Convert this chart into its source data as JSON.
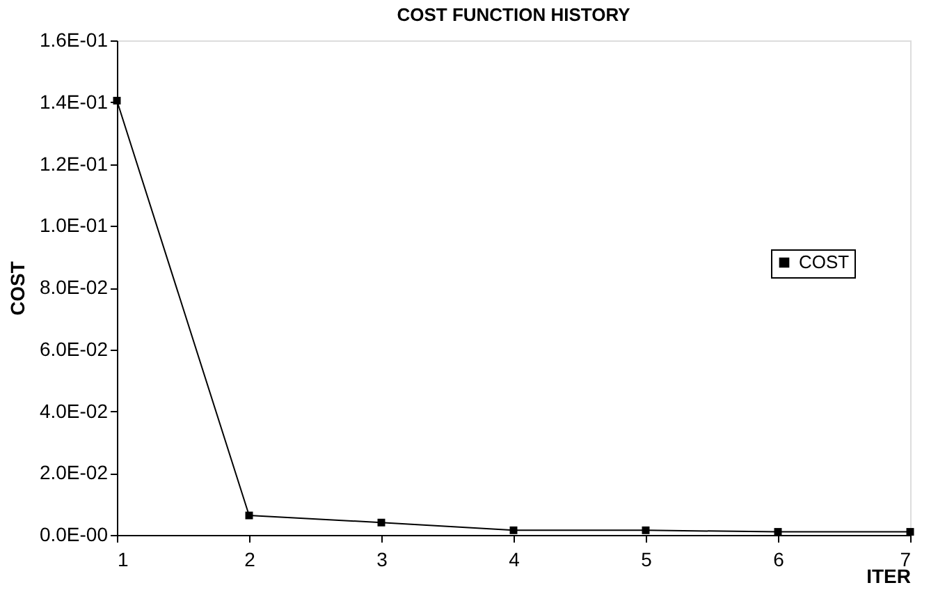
{
  "chart_data": {
    "type": "line",
    "title": "COST FUNCTION HISTORY",
    "xlabel": "ITER",
    "ylabel": "COST",
    "x": [
      1,
      2,
      3,
      4,
      5,
      6,
      7
    ],
    "series": [
      {
        "name": "COST",
        "color": "#000000",
        "values": [
          0.1405,
          0.0063,
          0.004,
          0.0015,
          0.0015,
          0.001,
          0.001
        ]
      }
    ],
    "xlim": [
      1,
      7
    ],
    "xticks": [
      1,
      2,
      3,
      4,
      5,
      6,
      7
    ],
    "ylim": [
      0,
      0.16
    ],
    "yticks": [
      {
        "value": 0,
        "label": "0.0E-00"
      },
      {
        "value": 0.02,
        "label": "2.0E-02"
      },
      {
        "value": 0.04,
        "label": "4.0E-02"
      },
      {
        "value": 0.06,
        "label": "6.0E-02"
      },
      {
        "value": 0.08,
        "label": "8.0E-02"
      },
      {
        "value": 0.1,
        "label": "1.0E-01"
      },
      {
        "value": 0.12,
        "label": "1.2E-01"
      },
      {
        "value": 0.14,
        "label": "1.4E-01"
      },
      {
        "value": 0.16,
        "label": "1.6E-01"
      }
    ],
    "grid": false,
    "legend": "right",
    "marker": "square",
    "line_style": "solid"
  }
}
